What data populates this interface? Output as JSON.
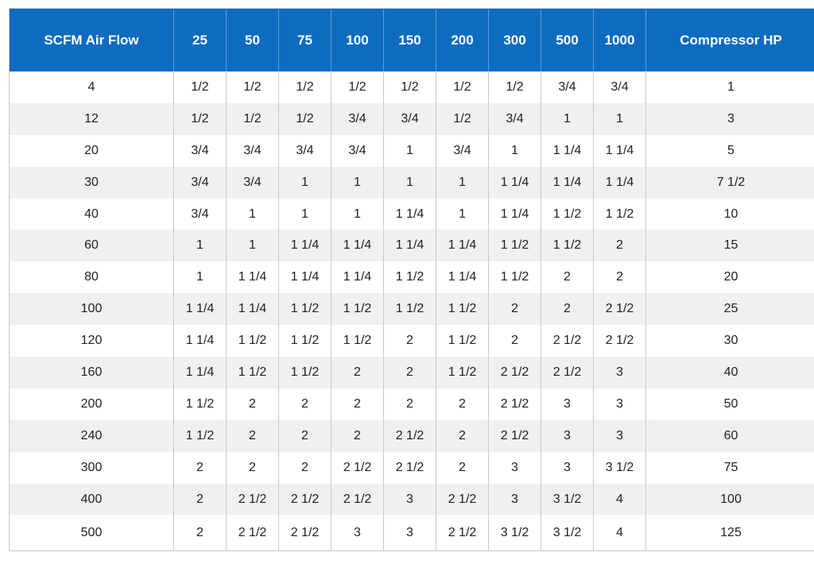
{
  "table": {
    "headers": [
      "SCFM Air Flow",
      "25",
      "50",
      "75",
      "100",
      "150",
      "200",
      "300",
      "500",
      "1000",
      "Compressor HP"
    ],
    "rows": [
      [
        "4",
        "1/2",
        "1/2",
        "1/2",
        "1/2",
        "1/2",
        "1/2",
        "1/2",
        "3/4",
        "3/4",
        "1"
      ],
      [
        "12",
        "1/2",
        "1/2",
        "1/2",
        "3/4",
        "3/4",
        "1/2",
        "3/4",
        "1",
        "1",
        "3"
      ],
      [
        "20",
        "3/4",
        "3/4",
        "3/4",
        "3/4",
        "1",
        "3/4",
        "1",
        "1 1/4",
        "1 1/4",
        "5"
      ],
      [
        "30",
        "3/4",
        "3/4",
        "1",
        "1",
        "1",
        "1",
        "1 1/4",
        "1 1/4",
        "1 1/4",
        "7 1/2"
      ],
      [
        "40",
        "3/4",
        "1",
        "1",
        "1",
        "1 1/4",
        "1",
        "1 1/4",
        "1 1/2",
        "1 1/2",
        "10"
      ],
      [
        "60",
        "1",
        "1",
        "1 1/4",
        "1 1/4",
        "1 1/4",
        "1 1/4",
        "1 1/2",
        "1 1/2",
        "2",
        "15"
      ],
      [
        "80",
        "1",
        "1 1/4",
        "1 1/4",
        "1 1/4",
        "1 1/2",
        "1 1/4",
        "1 1/2",
        "2",
        "2",
        "20"
      ],
      [
        "100",
        "1 1/4",
        "1 1/4",
        "1 1/2",
        "1 1/2",
        "1 1/2",
        "1 1/2",
        "2",
        "2",
        "2 1/2",
        "25"
      ],
      [
        "120",
        "1 1/4",
        "1 1/2",
        "1 1/2",
        "1 1/2",
        "2",
        "1 1/2",
        "2",
        "2 1/2",
        "2 1/2",
        "30"
      ],
      [
        "160",
        "1 1/4",
        "1 1/2",
        "1 1/2",
        "2",
        "2",
        "1 1/2",
        "2 1/2",
        "2 1/2",
        "3",
        "40"
      ],
      [
        "200",
        "1 1/2",
        "2",
        "2",
        "2",
        "2",
        "2",
        "2 1/2",
        "3",
        "3",
        "50"
      ],
      [
        "240",
        "1 1/2",
        "2",
        "2",
        "2",
        "2 1/2",
        "2",
        "2 1/2",
        "3",
        "3",
        "60"
      ],
      [
        "300",
        "2",
        "2",
        "2",
        "2 1/2",
        "2 1/2",
        "2",
        "3",
        "3",
        "3 1/2",
        "75"
      ],
      [
        "400",
        "2",
        "2 1/2",
        "2 1/2",
        "2 1/2",
        "3",
        "2 1/2",
        "3",
        "3 1/2",
        "4",
        "100"
      ],
      [
        "500",
        "2",
        "2 1/2",
        "2 1/2",
        "3",
        "3",
        "2 1/2",
        "3 1/2",
        "3 1/2",
        "4",
        "125"
      ]
    ]
  },
  "colors": {
    "header_bg": "#0e6cc0",
    "header_text": "#ffffff",
    "row_alt_bg": "#eff0f0",
    "row_bg": "#ffffff",
    "border": "#c9c9c9"
  }
}
